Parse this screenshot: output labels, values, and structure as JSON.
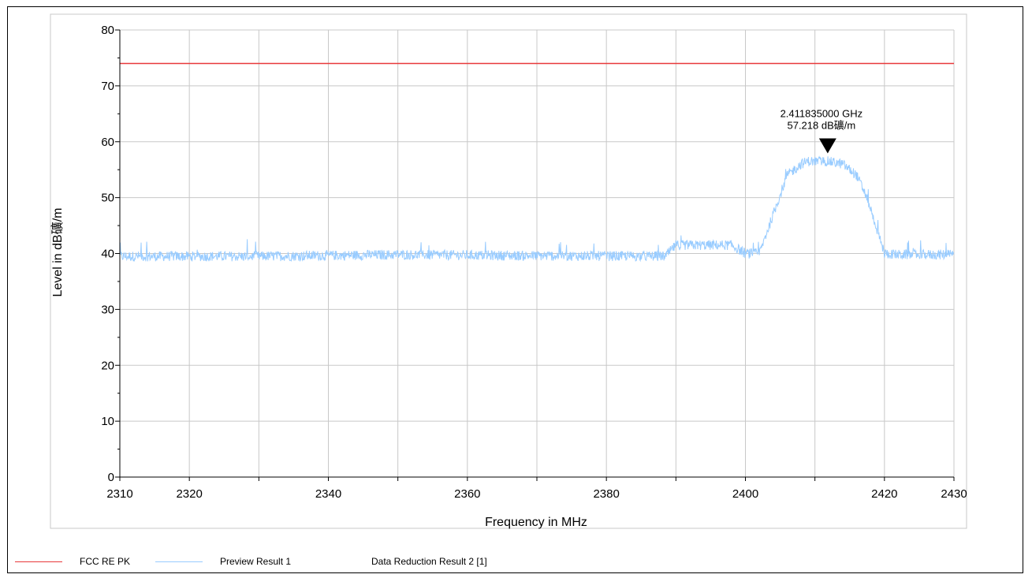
{
  "chart_data": {
    "type": "line",
    "xlabel": "Frequency in MHz",
    "ylabel": "Level in dB礦/m",
    "xlim": [
      2310,
      2430
    ],
    "ylim": [
      0,
      80
    ],
    "x_ticks": [
      2310,
      2320,
      2340,
      2360,
      2380,
      2400,
      2420,
      2430
    ],
    "y_ticks": [
      0,
      10,
      20,
      30,
      40,
      50,
      60,
      70,
      80
    ],
    "grid": true,
    "series": [
      {
        "name": "FCC RE PK",
        "color": "#e8393a",
        "x": [
          2310,
          2430
        ],
        "y": [
          74,
          74
        ]
      },
      {
        "name": "Preview Result 1",
        "color": "#99ccff",
        "x": [
          2310,
          2330,
          2350,
          2370,
          2388.5,
          2390,
          2398,
          2400,
          2402,
          2404,
          2406,
          2408,
          2409,
          2411.8,
          2414,
          2416,
          2417.5,
          2419,
          2420,
          2422,
          2430
        ],
        "y": [
          39.5,
          39.5,
          39.8,
          39.6,
          39.5,
          41.5,
          41.5,
          40.0,
          40.0,
          47.0,
          54.0,
          56.0,
          56.5,
          56.5,
          56.0,
          54.0,
          50.0,
          44.0,
          40.0,
          39.8,
          39.8
        ]
      }
    ],
    "marker": {
      "x": 2411.835,
      "y": 57.218,
      "label_line1": "2.411835000 GHz",
      "label_line2": "57.218 dB礦/m"
    }
  },
  "legend": {
    "item1": "FCC RE PK",
    "item2": "Preview Result 1",
    "item3": "Data Reduction Result 2 [1]"
  }
}
